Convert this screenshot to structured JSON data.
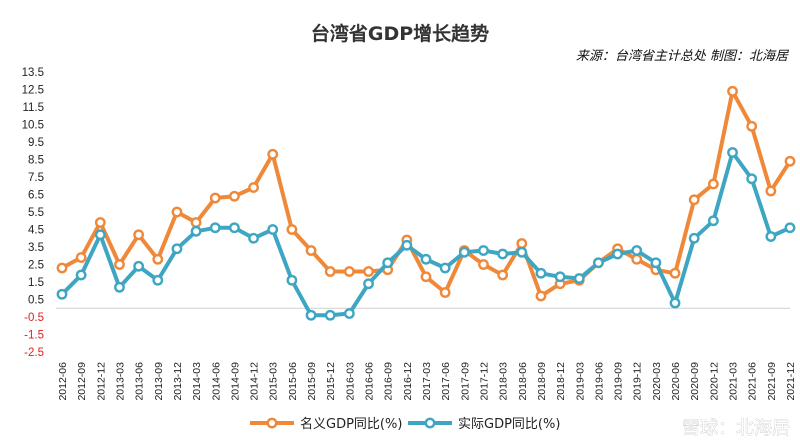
{
  "title": "台湾省GDP增长趋势",
  "source": "来源：台湾省主计总处 制图：北海居",
  "watermark": "雪球：北海居",
  "colors": {
    "nominal": "#f0883a",
    "real": "#3ea6c2",
    "marker_fill": "#ffffff"
  },
  "chart_data": {
    "type": "line",
    "ylim": [
      -2.5,
      13.5
    ],
    "yticks": [
      13.5,
      12.5,
      11.5,
      10.5,
      9.5,
      8.5,
      7.5,
      6.5,
      5.5,
      4.5,
      3.5,
      2.5,
      1.5,
      0.5,
      -0.5,
      -1.5,
      -2.5
    ],
    "x": [
      "2012-06",
      "2012-09",
      "2012-12",
      "2013-03",
      "2013-06",
      "2013-09",
      "2013-12",
      "2014-03",
      "2014-06",
      "2014-09",
      "2014-12",
      "2015-03",
      "2015-06",
      "2015-09",
      "2015-12",
      "2016-03",
      "2016-06",
      "2016-09",
      "2016-12",
      "2017-03",
      "2017-06",
      "2017-09",
      "2017-12",
      "2018-03",
      "2018-06",
      "2018-09",
      "2018-12",
      "2019-03",
      "2019-06",
      "2019-09",
      "2019-12",
      "2020-03",
      "2020-06",
      "2020-09",
      "2020-12",
      "2021-03",
      "2021-06",
      "2021-09",
      "2021-12"
    ],
    "series": [
      {
        "name": "名义GDP同比(%)",
        "color": "#f0883a",
        "values": [
          2.3,
          2.9,
          4.9,
          2.5,
          4.2,
          2.8,
          5.5,
          4.9,
          6.3,
          6.4,
          6.9,
          8.8,
          4.5,
          3.3,
          2.1,
          2.1,
          2.1,
          2.2,
          3.9,
          1.8,
          0.9,
          3.3,
          2.5,
          1.9,
          3.7,
          0.7,
          1.4,
          1.6,
          2.6,
          3.4,
          2.8,
          2.2,
          2.0,
          6.2,
          7.1,
          12.4,
          10.4,
          6.7,
          8.4
        ]
      },
      {
        "name": "实际GDP同比(%)",
        "color": "#3ea6c2",
        "values": [
          0.8,
          1.9,
          4.2,
          1.2,
          2.4,
          1.6,
          3.4,
          4.4,
          4.6,
          4.6,
          4.0,
          4.5,
          1.6,
          -0.4,
          -0.4,
          -0.3,
          1.4,
          2.6,
          3.6,
          2.8,
          2.3,
          3.2,
          3.3,
          3.1,
          3.2,
          2.0,
          1.8,
          1.7,
          2.6,
          3.1,
          3.3,
          2.6,
          0.3,
          4.0,
          5.0,
          8.9,
          7.4,
          4.1,
          4.6
        ]
      }
    ]
  }
}
